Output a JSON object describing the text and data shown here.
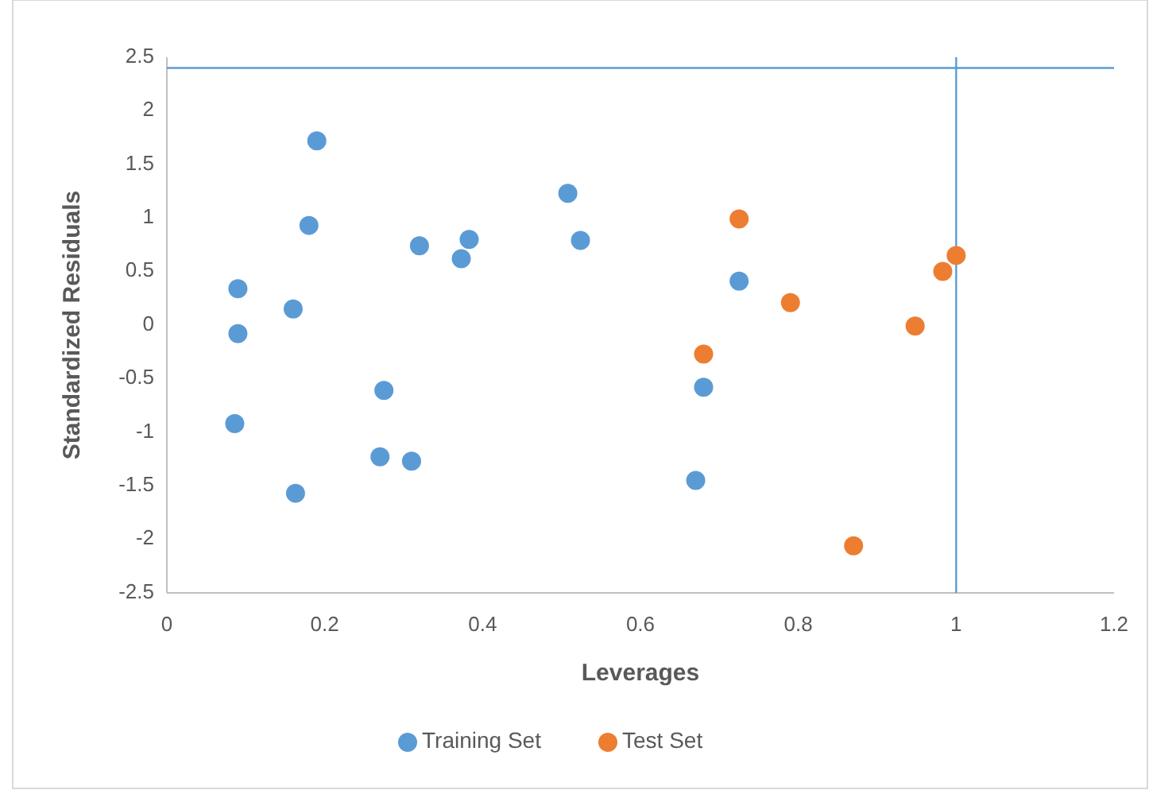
{
  "chart_data": {
    "type": "scatter",
    "xlabel": "Leverages",
    "ylabel": "Standardized Residuals",
    "xlim": [
      0,
      1.2
    ],
    "xticks": [
      0,
      0.2,
      0.4,
      0.6,
      0.8,
      1,
      1.2
    ],
    "ylim": [
      -2.5,
      2.5
    ],
    "yticks": [
      -2.5,
      -2,
      -1.5,
      -1,
      -0.5,
      0,
      0.5,
      1,
      1.5,
      2,
      2.5
    ],
    "grid": false,
    "legend": "bottom",
    "marker": "circle",
    "ref_lines": [
      {
        "axis": "x",
        "value": 1,
        "color": "#5b9bd5"
      },
      {
        "axis": "y",
        "value": 2.4,
        "color": "#5b9bd5"
      }
    ],
    "series": [
      {
        "name": "Training Set",
        "color": "#5b9bd5",
        "x": [
          0.09,
          0.09,
          0.086,
          0.16,
          0.163,
          0.18,
          0.19,
          0.275,
          0.27,
          0.31,
          0.32,
          0.373,
          0.383,
          0.508,
          0.524,
          0.725,
          0.68,
          0.67
        ],
        "values": [
          0.34,
          -0.08,
          -0.92,
          0.15,
          -1.57,
          0.93,
          1.72,
          -0.61,
          -1.23,
          -1.27,
          0.74,
          0.62,
          0.8,
          1.23,
          0.79,
          0.41,
          -0.58,
          -1.45
        ]
      },
      {
        "name": "Test Set",
        "color": "#ed7d31",
        "x": [
          0.725,
          0.68,
          0.79,
          0.87,
          0.948,
          0.983,
          1.0
        ],
        "values": [
          0.99,
          -0.27,
          0.21,
          -2.06,
          -0.01,
          0.5,
          0.65
        ]
      }
    ]
  }
}
